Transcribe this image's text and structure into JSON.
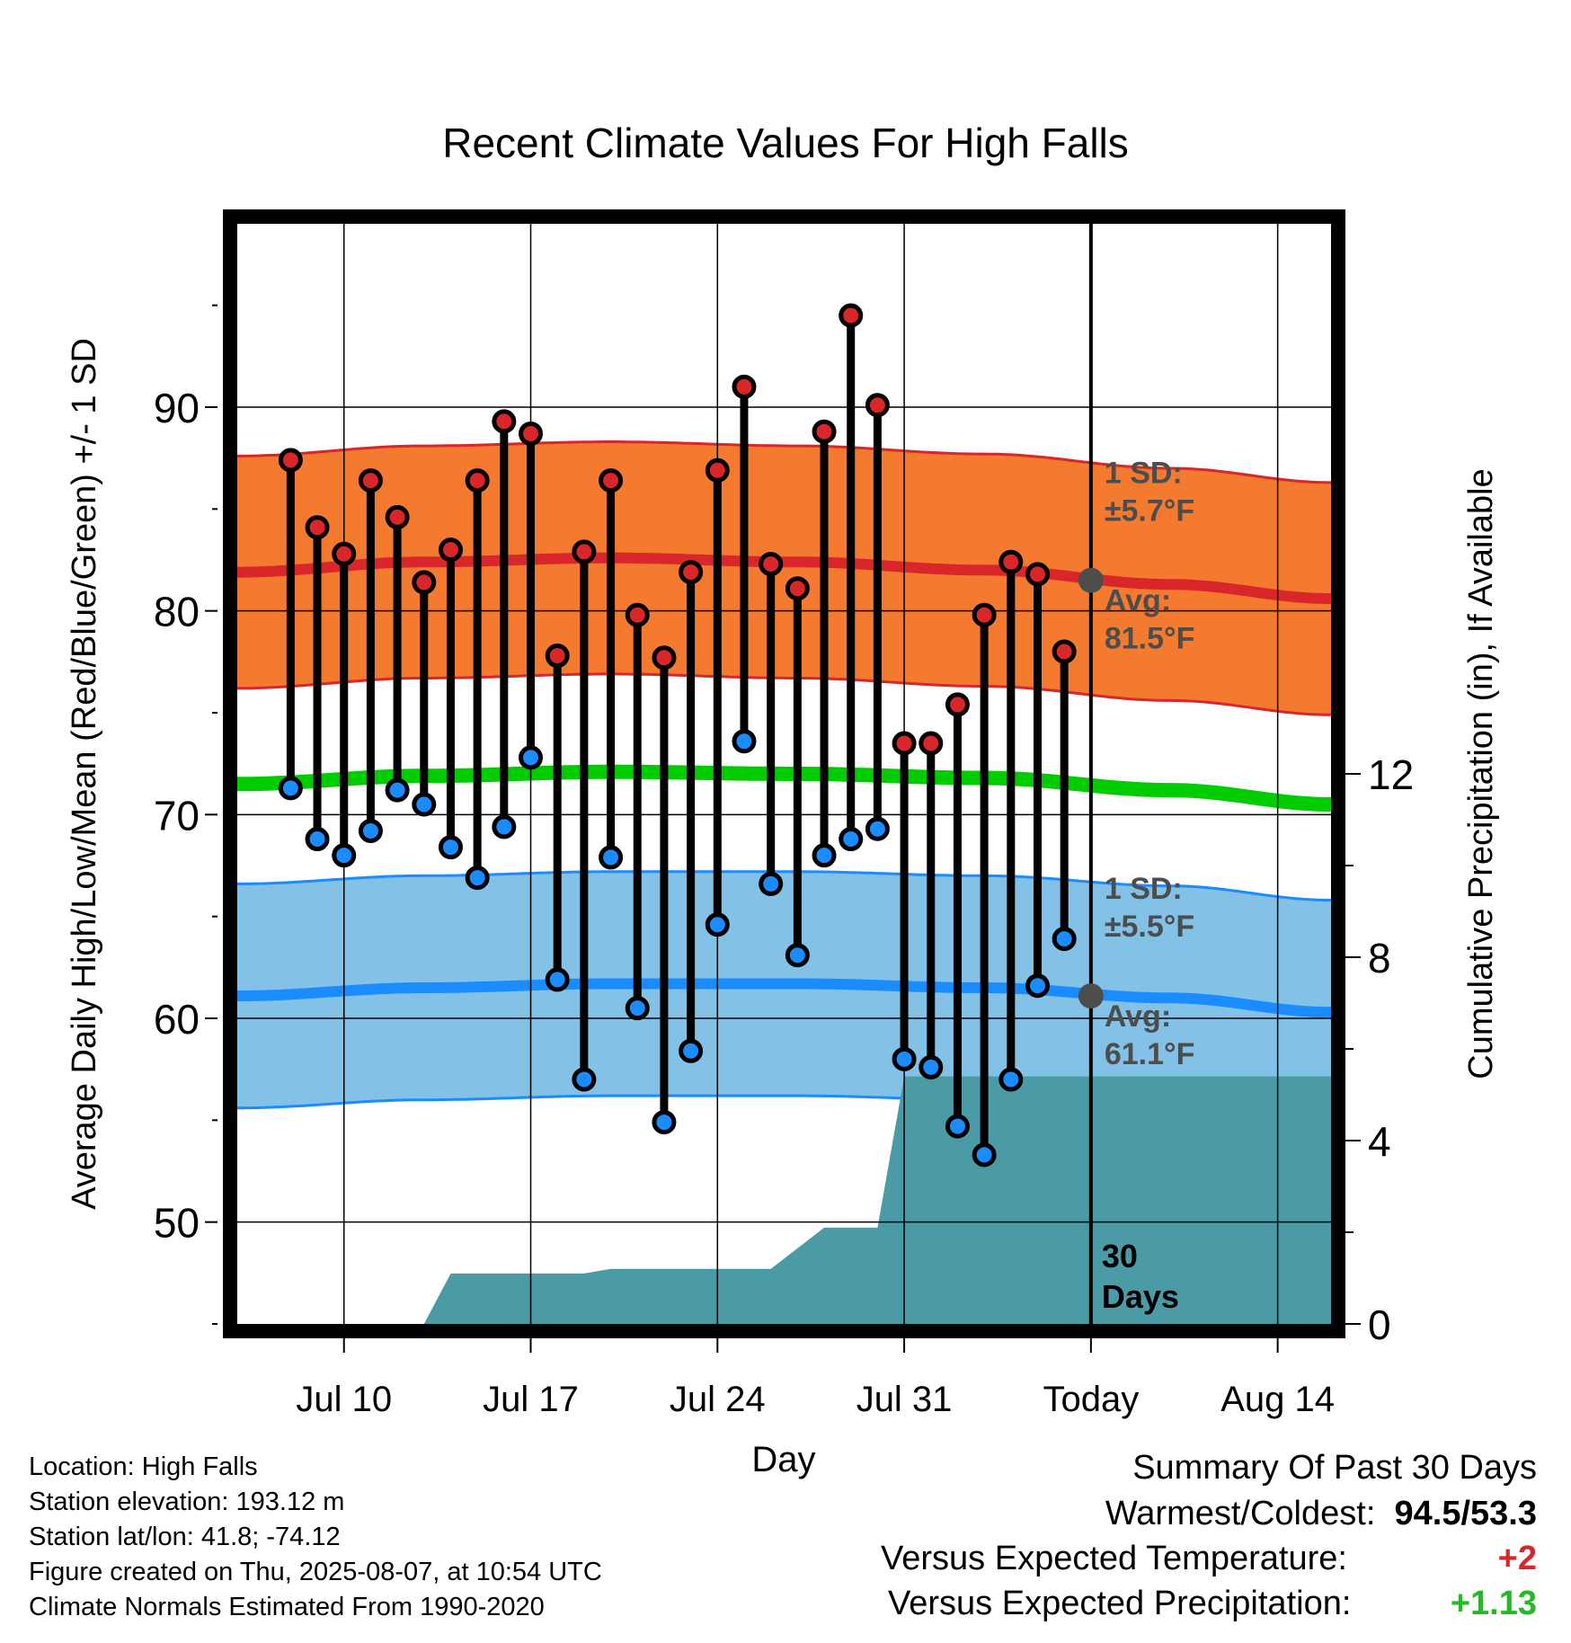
{
  "title": "Recent Climate Values For High Falls",
  "chart_data": {
    "type": "line",
    "title": "Recent Climate Values For High Falls",
    "xlabel": "Day",
    "ylabel": "Average Daily High/Low/Mean (Red/Blue/Green) +/- 1 SD",
    "y2label": "Cumulative Precipitation (in), If Available",
    "ylim": [
      45,
      99
    ],
    "y_ticks": [
      50,
      60,
      70,
      80,
      90
    ],
    "y2lim": [
      0,
      24
    ],
    "y2_ticks": [
      0,
      4,
      8,
      12
    ],
    "xlim": [
      "2025-07-06",
      "2025-08-16"
    ],
    "x_ticks": [
      {
        "date": "2025-07-10",
        "label": "Jul 10"
      },
      {
        "date": "2025-07-17",
        "label": "Jul 17"
      },
      {
        "date": "2025-07-24",
        "label": "Jul 24"
      },
      {
        "date": "2025-07-31",
        "label": "Jul 31"
      },
      {
        "date": "2025-08-07",
        "label": "Today"
      },
      {
        "date": "2025-08-14",
        "label": "Aug 14"
      }
    ],
    "today": "2025-08-07",
    "window_label": "30\nDays",
    "daily_observations": [
      {
        "date": "2025-07-08",
        "high": 87.4,
        "low": 71.3
      },
      {
        "date": "2025-07-09",
        "high": 84.1,
        "low": 68.8
      },
      {
        "date": "2025-07-10",
        "high": 82.8,
        "low": 68.0
      },
      {
        "date": "2025-07-11",
        "high": 86.4,
        "low": 69.2
      },
      {
        "date": "2025-07-12",
        "high": 84.6,
        "low": 71.2
      },
      {
        "date": "2025-07-13",
        "high": 81.4,
        "low": 70.5
      },
      {
        "date": "2025-07-14",
        "high": 83.0,
        "low": 68.4
      },
      {
        "date": "2025-07-15",
        "high": 86.4,
        "low": 66.9
      },
      {
        "date": "2025-07-16",
        "high": 89.3,
        "low": 69.4
      },
      {
        "date": "2025-07-17",
        "high": 88.7,
        "low": 72.8
      },
      {
        "date": "2025-07-18",
        "high": 77.8,
        "low": 61.9
      },
      {
        "date": "2025-07-19",
        "high": 82.9,
        "low": 57.0
      },
      {
        "date": "2025-07-20",
        "high": 86.4,
        "low": 67.9
      },
      {
        "date": "2025-07-21",
        "high": 79.8,
        "low": 60.5
      },
      {
        "date": "2025-07-22",
        "high": 77.7,
        "low": 54.9
      },
      {
        "date": "2025-07-23",
        "high": 81.9,
        "low": 58.4
      },
      {
        "date": "2025-07-24",
        "high": 86.9,
        "low": 64.6
      },
      {
        "date": "2025-07-25",
        "high": 91.0,
        "low": 73.6
      },
      {
        "date": "2025-07-26",
        "high": 82.3,
        "low": 66.6
      },
      {
        "date": "2025-07-27",
        "high": 81.1,
        "low": 63.1
      },
      {
        "date": "2025-07-28",
        "high": 88.8,
        "low": 68.0
      },
      {
        "date": "2025-07-29",
        "high": 94.5,
        "low": 68.8
      },
      {
        "date": "2025-07-30",
        "high": 90.1,
        "low": 69.3
      },
      {
        "date": "2025-07-31",
        "high": 73.5,
        "low": 58.0
      },
      {
        "date": "2025-08-01",
        "high": 73.5,
        "low": 57.6
      },
      {
        "date": "2025-08-02",
        "high": 75.4,
        "low": 54.7
      },
      {
        "date": "2025-08-03",
        "high": 79.8,
        "low": 53.3
      },
      {
        "date": "2025-08-04",
        "high": 82.4,
        "low": 57.0
      },
      {
        "date": "2025-08-05",
        "high": 81.8,
        "low": 61.6
      },
      {
        "date": "2025-08-06",
        "high": 78.0,
        "low": 63.9
      }
    ],
    "normals": {
      "high_mean": [
        {
          "date": "2025-07-06",
          "value": 81.9
        },
        {
          "date": "2025-07-13",
          "value": 82.4
        },
        {
          "date": "2025-07-20",
          "value": 82.6
        },
        {
          "date": "2025-07-27",
          "value": 82.4
        },
        {
          "date": "2025-08-03",
          "value": 82.0
        },
        {
          "date": "2025-08-10",
          "value": 81.3
        },
        {
          "date": "2025-08-16",
          "value": 80.6
        }
      ],
      "high_sd": 5.7,
      "low_mean": [
        {
          "date": "2025-07-06",
          "value": 61.1
        },
        {
          "date": "2025-07-13",
          "value": 61.5
        },
        {
          "date": "2025-07-20",
          "value": 61.7
        },
        {
          "date": "2025-07-27",
          "value": 61.7
        },
        {
          "date": "2025-08-03",
          "value": 61.5
        },
        {
          "date": "2025-08-10",
          "value": 61.0
        },
        {
          "date": "2025-08-16",
          "value": 60.3
        }
      ],
      "low_sd": 5.5,
      "mean": [
        {
          "date": "2025-07-06",
          "value": 71.5
        },
        {
          "date": "2025-07-13",
          "value": 71.9
        },
        {
          "date": "2025-07-20",
          "value": 72.1
        },
        {
          "date": "2025-07-27",
          "value": 72.0
        },
        {
          "date": "2025-08-03",
          "value": 71.8
        },
        {
          "date": "2025-08-10",
          "value": 71.2
        },
        {
          "date": "2025-08-16",
          "value": 70.5
        }
      ]
    },
    "cumulative_precipitation": [
      {
        "date": "2025-07-06",
        "value": 0.0
      },
      {
        "date": "2025-07-12",
        "value": 0.0
      },
      {
        "date": "2025-07-13",
        "value": 0.0
      },
      {
        "date": "2025-07-14",
        "value": 1.1
      },
      {
        "date": "2025-07-19",
        "value": 1.1
      },
      {
        "date": "2025-07-20",
        "value": 1.2
      },
      {
        "date": "2025-07-26",
        "value": 1.2
      },
      {
        "date": "2025-07-28",
        "value": 2.1
      },
      {
        "date": "2025-07-30",
        "value": 2.1
      },
      {
        "date": "2025-07-31",
        "value": 5.4
      },
      {
        "date": "2025-08-16",
        "value": 5.4
      }
    ],
    "annotations": {
      "high_sd_label": "1 SD:",
      "high_sd_value": "±5.7°F",
      "high_avg_label": "Avg:",
      "high_avg_value": "81.5°F",
      "high_avg": 81.5,
      "low_sd_label": "1 SD:",
      "low_sd_value": "±5.5°F",
      "low_avg_label": "Avg:",
      "low_avg_value": "61.1°F",
      "low_avg": 61.1
    },
    "colors": {
      "high_band": "#f47a30",
      "high_line": "#d8262a",
      "low_band": "#84c1e7",
      "low_line": "#1a8cff",
      "mean_line": "#00cc00",
      "precip": "#4a9ba6",
      "high_marker": "#d8262a",
      "low_marker": "#1a8cff",
      "annotation": "#4d4d4d"
    }
  },
  "info": {
    "location": "Location: High Falls",
    "elevation": "Station elevation: 193.12 m",
    "latlon": "Station lat/lon: 41.8; -74.12",
    "created": "Figure created on Thu, 2025-08-07, at 10:54 UTC",
    "normals": "Climate Normals Estimated From 1990-2020"
  },
  "summary": {
    "heading": "Summary Of Past 30 Days",
    "warmest_coldest_label": "Warmest/Coldest:",
    "warmest_coldest_value": "94.5/53.3",
    "temp_label": "Versus Expected Temperature:",
    "temp_value": "+2",
    "temp_color": "#d8262a",
    "precip_label": "Versus Expected Precipitation:",
    "precip_value": "+1.13",
    "precip_color": "#22bb22"
  }
}
